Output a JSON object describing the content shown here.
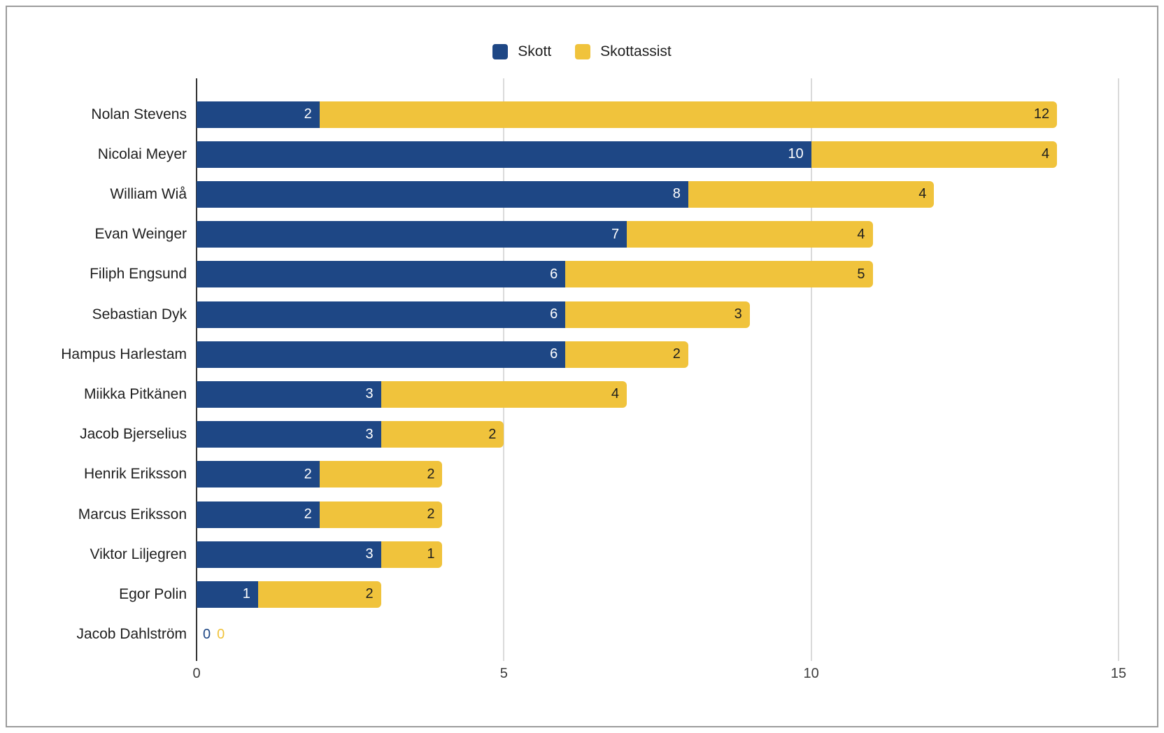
{
  "chart": {
    "legend": [
      {
        "label": "Skott",
        "color": "#1E4785"
      },
      {
        "label": "Skottassist",
        "color": "#F0C33C"
      }
    ]
  },
  "chart_data": {
    "type": "bar",
    "orientation": "horizontal",
    "stacked": true,
    "title": "",
    "xlabel": "",
    "ylabel": "",
    "categories": [
      "Nolan Stevens",
      "Nicolai Meyer",
      "William Wiå",
      "Evan Weinger",
      "Filiph Engsund",
      "Sebastian Dyk",
      "Hampus Harlestam",
      "Miikka Pitkänen",
      "Jacob Bjerselius",
      "Henrik Eriksson",
      "Marcus Eriksson",
      "Viktor Liljegren",
      "Egor Polin",
      "Jacob Dahlström"
    ],
    "series": [
      {
        "name": "Skott",
        "color": "#1E4785",
        "values": [
          2,
          10,
          8,
          7,
          6,
          6,
          6,
          3,
          3,
          2,
          2,
          3,
          1,
          0
        ]
      },
      {
        "name": "Skottassist",
        "color": "#F0C33C",
        "values": [
          12,
          4,
          4,
          4,
          5,
          3,
          2,
          4,
          2,
          2,
          2,
          1,
          2,
          0
        ]
      }
    ],
    "xlim": [
      0,
      15
    ],
    "xticks": [
      0,
      5,
      10,
      15
    ],
    "grid": "vertical",
    "legend_position": "top-center",
    "value_labels": "inside-end"
  },
  "colors": {
    "bar_blue": "#1E4785",
    "bar_yellow": "#F0C33C",
    "gridline": "#dadada",
    "baseline": "#333333",
    "frame_border": "#9b9b9b",
    "text": "#1f1f1f",
    "tick_text": "#3c3c3c"
  }
}
